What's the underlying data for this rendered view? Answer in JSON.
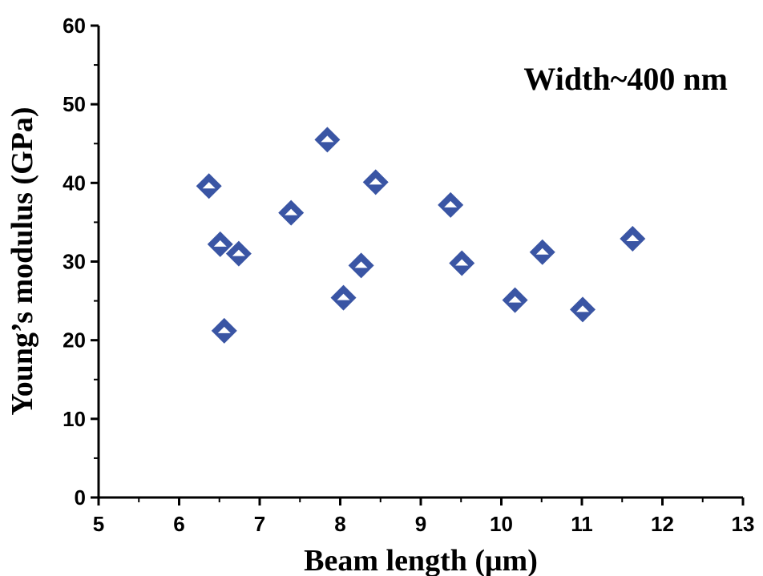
{
  "chart_data": {
    "type": "scatter",
    "annotation": "Width~400 nm",
    "xlabel": "Beam length (μm)",
    "ylabel": "Young’s modulus (GPa)",
    "xlim": [
      5,
      13
    ],
    "ylim": [
      0,
      60
    ],
    "xticks": [
      "5",
      "6",
      "7",
      "8",
      "9",
      "10",
      "11",
      "12",
      "13"
    ],
    "yticks": [
      "0",
      "10",
      "20",
      "30",
      "40",
      "50",
      "60"
    ],
    "marker": "diamond",
    "marker_color": "#3a55a4",
    "grid": false,
    "points": [
      {
        "x": 6.37,
        "y": 39.6
      },
      {
        "x": 6.51,
        "y": 32.2
      },
      {
        "x": 6.74,
        "y": 31.0
      },
      {
        "x": 6.56,
        "y": 21.2
      },
      {
        "x": 7.39,
        "y": 36.2
      },
      {
        "x": 7.84,
        "y": 45.5
      },
      {
        "x": 8.04,
        "y": 25.4
      },
      {
        "x": 8.26,
        "y": 29.5
      },
      {
        "x": 8.44,
        "y": 40.1
      },
      {
        "x": 9.37,
        "y": 37.2
      },
      {
        "x": 9.51,
        "y": 29.8
      },
      {
        "x": 10.17,
        "y": 25.1
      },
      {
        "x": 10.51,
        "y": 31.2
      },
      {
        "x": 11.01,
        "y": 23.9
      },
      {
        "x": 11.63,
        "y": 32.9
      }
    ]
  }
}
